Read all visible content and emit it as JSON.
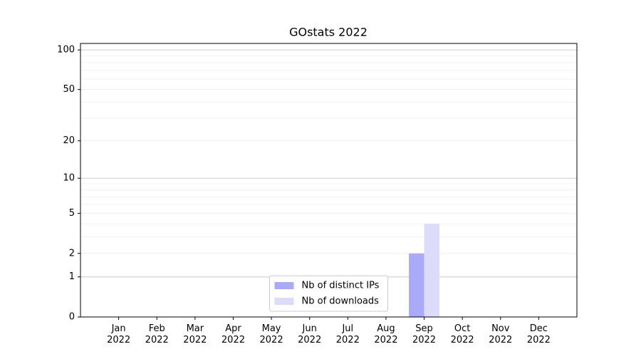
{
  "chart_data": {
    "type": "bar",
    "title": "GOstats 2022",
    "categories": [
      "Jan\n2022",
      "Feb\n2022",
      "Mar\n2022",
      "Apr\n2022",
      "May\n2022",
      "Jun\n2022",
      "Jul\n2022",
      "Aug\n2022",
      "Sep\n2022",
      "Oct\n2022",
      "Nov\n2022",
      "Dec\n2022"
    ],
    "series": [
      {
        "name": "Nb of distinct IPs",
        "color": "#aaaaf8",
        "values": [
          0,
          0,
          0,
          0,
          0,
          0,
          0,
          0,
          2,
          0,
          0,
          0
        ]
      },
      {
        "name": "Nb of downloads",
        "color": "#dcdcfa",
        "values": [
          0,
          0,
          0,
          0,
          0,
          0,
          0,
          0,
          4,
          0,
          0,
          0
        ]
      }
    ],
    "yscale": "symlog",
    "ylim": [
      0,
      112
    ],
    "yticks": [
      0,
      1,
      2,
      5,
      10,
      20,
      50,
      100
    ],
    "yminorticks": [
      3,
      4,
      6,
      7,
      8,
      9,
      30,
      40,
      60,
      70,
      80,
      90
    ],
    "grid": true,
    "legend": "lower center"
  }
}
